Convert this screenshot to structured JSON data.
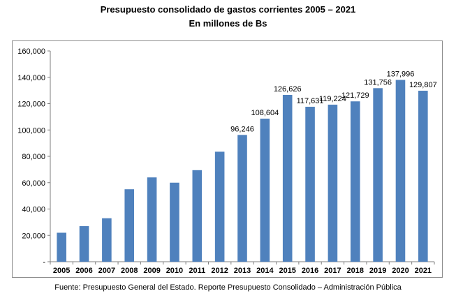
{
  "chart_data": {
    "type": "bar",
    "title": "Presupuesto consolidado de gastos corrientes 2005 – 2021",
    "subtitle": "En millones de Bs",
    "source": "Fuente: Presupuesto General del Estado. Reporte Presupuesto Consolidado – Administración Pública",
    "categories": [
      "2005",
      "2006",
      "2007",
      "2008",
      "2009",
      "2010",
      "2011",
      "2012",
      "2013",
      "2014",
      "2015",
      "2016",
      "2017",
      "2018",
      "2019",
      "2020",
      "2021"
    ],
    "values": [
      22000,
      27000,
      33000,
      55000,
      64000,
      60000,
      69500,
      83500,
      96246,
      108604,
      126626,
      117631,
      119224,
      121729,
      131756,
      137996,
      129807
    ],
    "data_labels": [
      "",
      "",
      "",
      "",
      "",
      "",
      "",
      "",
      "96,246",
      "108,604",
      "126,626",
      "117,631",
      "119,224",
      "121,729",
      "131,756",
      "137,996",
      "129,807"
    ],
    "ylim": [
      0,
      160000
    ],
    "yticks": [
      0,
      20000,
      40000,
      60000,
      80000,
      100000,
      120000,
      140000,
      160000
    ],
    "ytick_labels": [
      "-",
      "20,000",
      "40,000",
      "60,000",
      "80,000",
      "100,000",
      "120,000",
      "140,000",
      "160,000"
    ],
    "xlabel": "",
    "ylabel": "",
    "bar_color": "#4f81bd",
    "grid": false,
    "legend": "none"
  }
}
